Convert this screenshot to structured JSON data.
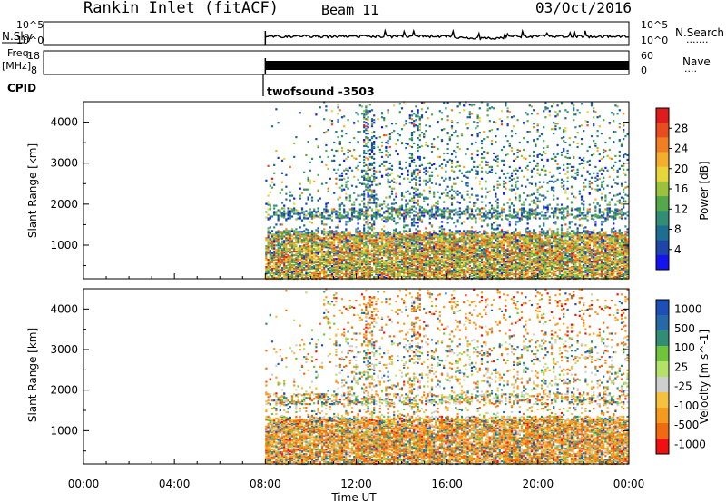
{
  "header": {
    "station": "Rankin Inlet (fitACF)",
    "beam": "Beam 11",
    "date": "03/Oct/2016"
  },
  "summary": {
    "nsky_label": "N.Sky",
    "nsky_ticks": [
      "10^5",
      "10^0"
    ],
    "nsearch_label": "N.Search",
    "nsearch_ticks": [
      "10^5",
      "10^0"
    ],
    "freq_label_1": "Freq.",
    "freq_label_2": "[MHz]",
    "freq_ticks": [
      "18",
      "8"
    ],
    "nave_label": "Nave",
    "nave_ticks": [
      "60",
      "0"
    ],
    "cpid_label": "CPID",
    "cpid_text": "twofsound -3503",
    "dots": "·······",
    "dots_short": "····"
  },
  "colors": {
    "power_scale": [
      "#1414f0",
      "#1c46a8",
      "#1d6f92",
      "#2f8e73",
      "#55a84a",
      "#9ac23a",
      "#e8d53a",
      "#f5ad2c",
      "#ef7f22",
      "#e94c1e",
      "#df1b1b"
    ],
    "velocity_scale": [
      "#f01010",
      "#f06a10",
      "#f49a1c",
      "#f6c23e",
      "#cfcfcf",
      "#b4e266",
      "#6ec53c",
      "#2f8e73",
      "#2669a8",
      "#1d4fb8"
    ]
  },
  "chart_data": [
    {
      "type": "heatmap",
      "title": "",
      "xlabel": "",
      "ylabel": "Slant Range [km]",
      "xlim": [
        "00:00",
        "00:00"
      ],
      "ylim": [
        180,
        4500
      ],
      "yticks": [
        "1000",
        "2000",
        "3000",
        "4000"
      ],
      "colorbar_label": "Power [dB]",
      "colorbar_ticks": [
        "4",
        "8",
        "12",
        "16",
        "20",
        "24",
        "28"
      ],
      "colorbar_range": [
        0,
        32
      ],
      "data_start": "08:00",
      "data_end": "00:00"
    },
    {
      "type": "heatmap",
      "title": "",
      "xlabel": "Time UT",
      "ylabel": "Slant Range [km]",
      "xlim": [
        "00:00",
        "00:00"
      ],
      "xticks": [
        "00:00",
        "04:00",
        "08:00",
        "12:00",
        "16:00",
        "20:00",
        "00:00"
      ],
      "ylim": [
        180,
        4500
      ],
      "yticks": [
        "1000",
        "2000",
        "3000",
        "4000"
      ],
      "colorbar_label": "Velocity [m s^-1]",
      "colorbar_ticks": [
        "1000",
        "500",
        "100",
        "25",
        "-25",
        "-100",
        "-500",
        "-1000"
      ],
      "data_start": "08:00",
      "data_end": "00:00"
    }
  ]
}
